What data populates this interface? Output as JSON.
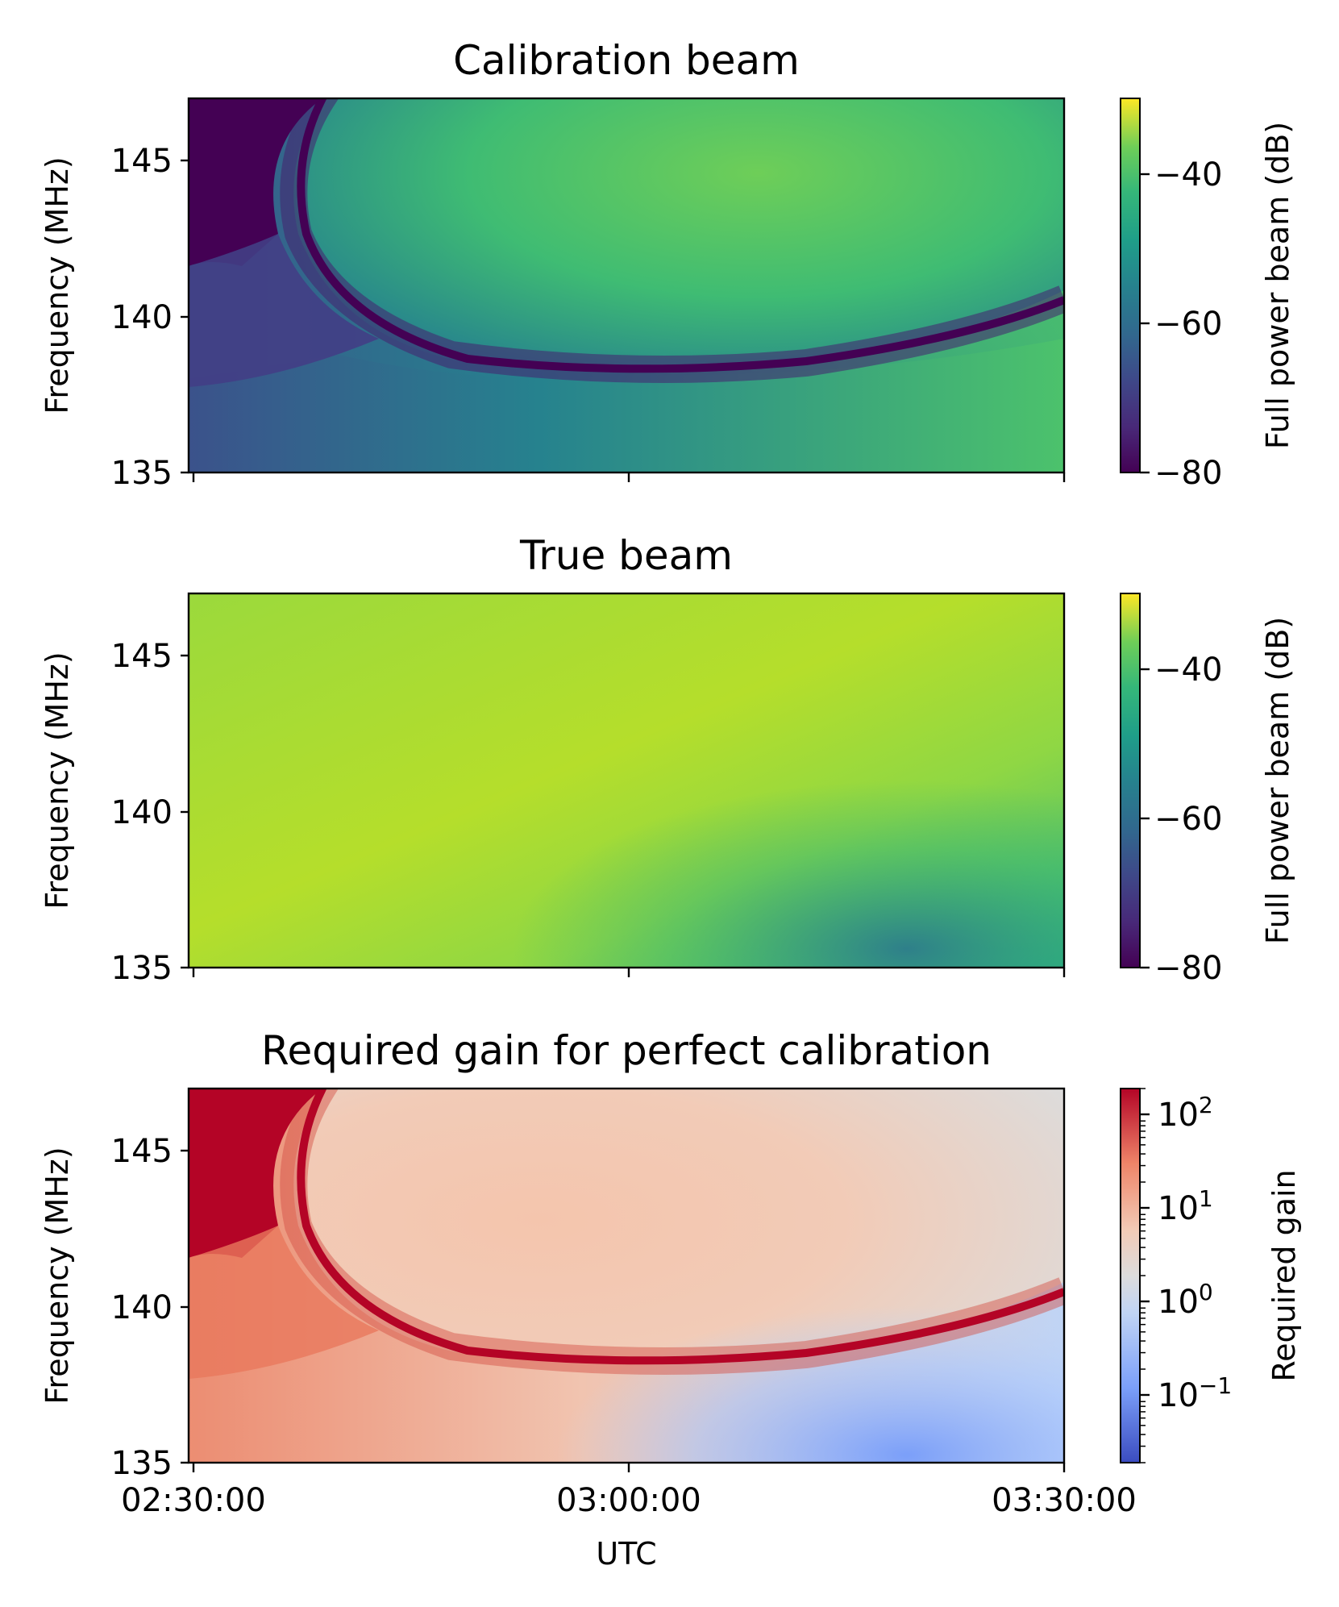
{
  "chart_data": [
    {
      "type": "heatmap",
      "title": "Calibration beam",
      "xlabel": "",
      "ylabel": "Frequency (MHz)",
      "x_ticks": [
        "02:30:00",
        "03:00:00",
        "03:30:00"
      ],
      "x_tick_labels_visible": false,
      "y_ticks": [
        135,
        140,
        145
      ],
      "ylim": [
        135,
        147
      ],
      "colormap": "viridis",
      "colorbar": {
        "label": "Full power beam (dB)",
        "range": [
          -80,
          -30
        ],
        "ticks": [
          -40,
          -60,
          -80
        ],
        "tick_labels": [
          "−40",
          "−60",
          "−80"
        ]
      },
      "features": "Deep null (about -80 dB) along a curve from 147 MHz at 02:40 down to ~138 MHz near 03:00 and rising to ~140.5 MHz at 03:30; dark region upper-left; -45 dB to -50 dB above the null"
    },
    {
      "type": "heatmap",
      "title": "True beam",
      "xlabel": "",
      "ylabel": "Frequency (MHz)",
      "x_ticks": [
        "02:30:00",
        "03:00:00",
        "03:30:00"
      ],
      "x_tick_labels_visible": false,
      "y_ticks": [
        135,
        140,
        145
      ],
      "ylim": [
        135,
        147
      ],
      "colormap": "viridis",
      "colorbar": {
        "label": "Full power beam (dB)",
        "range": [
          -80,
          -30
        ],
        "ticks": [
          -40,
          -60,
          -80
        ],
        "tick_labels": [
          "−40",
          "−60",
          "−80"
        ]
      },
      "features": "Mostly -35 to -40 dB; darker (about -60 dB) band toward lower-right"
    },
    {
      "type": "heatmap",
      "title": "Required gain for perfect calibration",
      "xlabel": "UTC",
      "ylabel": "Frequency (MHz)",
      "x_ticks": [
        "02:30:00",
        "03:00:00",
        "03:30:00"
      ],
      "y_ticks": [
        135,
        140,
        145
      ],
      "ylim": [
        135,
        147
      ],
      "colormap": "coolwarm",
      "colorbar": {
        "label": "Required gain",
        "scale": "log",
        "range": [
          0.02,
          200
        ],
        "ticks": [
          100,
          10,
          1,
          0.1
        ],
        "tick_bases": [
          "10",
          "10",
          "10",
          "10"
        ],
        "tick_exponents": [
          "2",
          "1",
          "0",
          "−1"
        ]
      },
      "features": "Very high gain (>100) along the calibration-beam null and in upper-left; near 1 in upper-right; below 1 in lower-right"
    }
  ]
}
